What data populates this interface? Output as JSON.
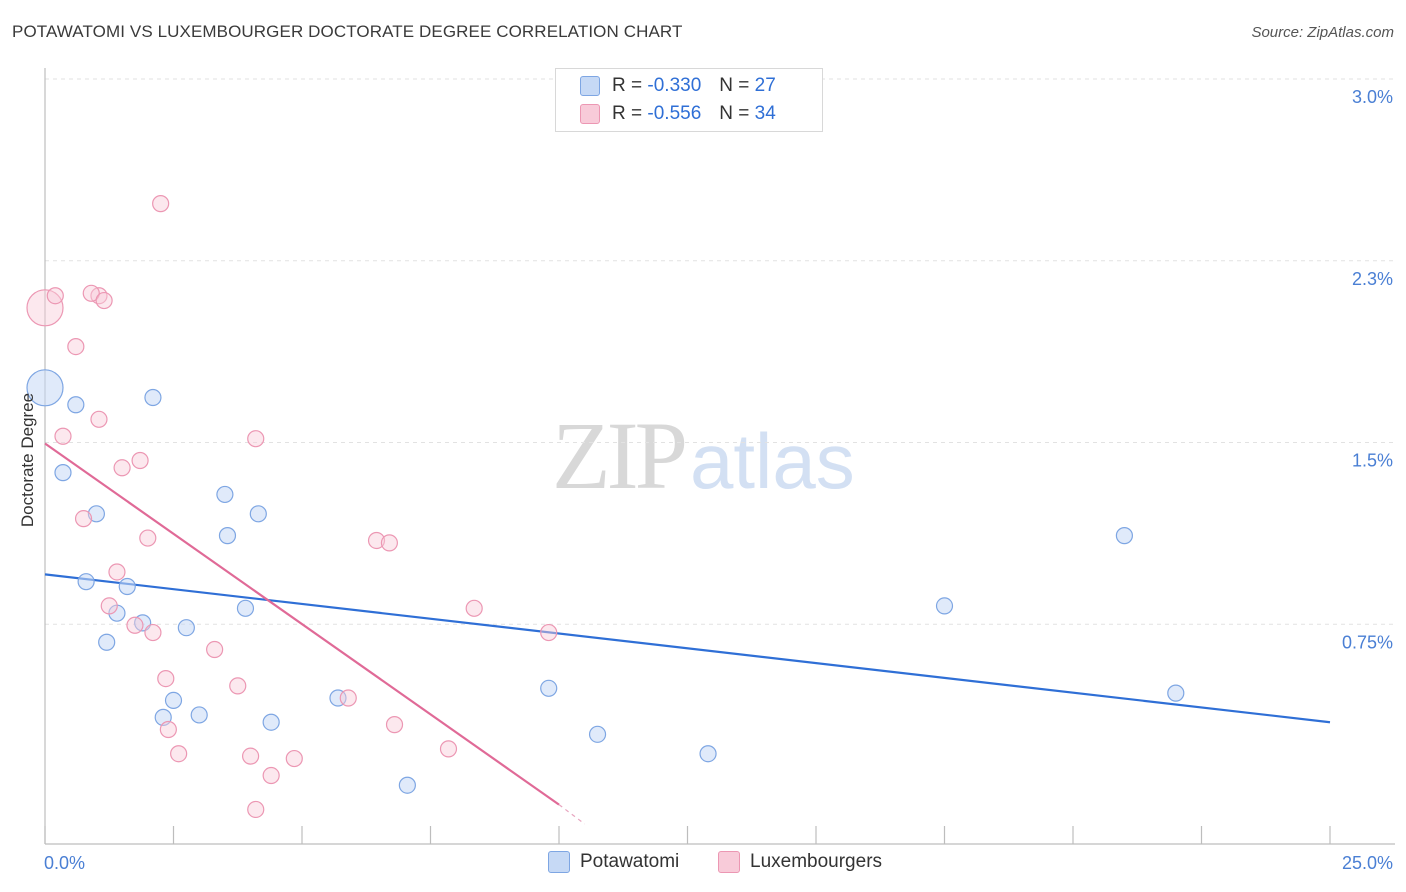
{
  "title": "POTAWATOMI VS LUXEMBOURGER DOCTORATE DEGREE CORRELATION CHART",
  "source": "Source: ZipAtlas.com",
  "watermark": {
    "zip": "ZIP",
    "atlas": "atlas"
  },
  "legend": {
    "rows": [
      {
        "r_label": "R = ",
        "r_value": "-0.330",
        "n_label": "N = ",
        "n_value": "27"
      },
      {
        "r_label": "R = ",
        "r_value": "-0.556",
        "n_label": "N = ",
        "n_value": "34"
      }
    ]
  },
  "bottom_legend": {
    "potawatomi": "Potawatomi",
    "luxembourgers": "Luxembourgers"
  },
  "chart_data": {
    "type": "scatter",
    "title": "POTAWATOMI VS LUXEMBOURGER DOCTORATE DEGREE CORRELATION CHART",
    "xlabel": "",
    "ylabel": "Doctorate Degree",
    "xlim": [
      0,
      25
    ],
    "ylim": [
      0,
      3.0
    ],
    "x_tick_labels": [
      "0.0%",
      "25.0%"
    ],
    "y_ticks": [
      0.75,
      1.5,
      2.25,
      3.0
    ],
    "y_tick_labels": [
      "0.75%",
      "1.5%",
      "2.3%",
      "3.0%"
    ],
    "colors": {
      "potawatomi": "#6a9fe0",
      "luxembourgers": "#ec8fad",
      "blue_line": "#2f6fd6",
      "pink_line": "#e06a97"
    },
    "series": [
      {
        "name": "Potawatomi",
        "r": -0.33,
        "n": 27,
        "trend": {
          "x": [
            0,
            25
          ],
          "y": [
            1.03,
            0.42
          ]
        },
        "points": [
          {
            "x": 0.0,
            "y": 1.8,
            "big": true
          },
          {
            "x": 0.6,
            "y": 1.73
          },
          {
            "x": 0.35,
            "y": 1.45
          },
          {
            "x": 1.0,
            "y": 1.28
          },
          {
            "x": 0.8,
            "y": 1.0
          },
          {
            "x": 1.6,
            "y": 0.98
          },
          {
            "x": 1.4,
            "y": 0.87
          },
          {
            "x": 1.9,
            "y": 0.83
          },
          {
            "x": 1.2,
            "y": 0.75
          },
          {
            "x": 2.1,
            "y": 1.76
          },
          {
            "x": 2.75,
            "y": 0.81
          },
          {
            "x": 3.5,
            "y": 1.36
          },
          {
            "x": 3.55,
            "y": 1.19
          },
          {
            "x": 3.9,
            "y": 0.89
          },
          {
            "x": 4.15,
            "y": 1.28
          },
          {
            "x": 2.5,
            "y": 0.51
          },
          {
            "x": 2.3,
            "y": 0.44
          },
          {
            "x": 3.0,
            "y": 0.45
          },
          {
            "x": 4.4,
            "y": 0.42
          },
          {
            "x": 5.7,
            "y": 0.52
          },
          {
            "x": 7.05,
            "y": 0.16
          },
          {
            "x": 9.8,
            "y": 0.56
          },
          {
            "x": 10.75,
            "y": 0.37
          },
          {
            "x": 12.9,
            "y": 0.29
          },
          {
            "x": 17.5,
            "y": 0.9
          },
          {
            "x": 21.0,
            "y": 1.19
          },
          {
            "x": 22.0,
            "y": 0.54
          }
        ]
      },
      {
        "name": "Luxembourgers",
        "r": -0.556,
        "n": 34,
        "trend": {
          "x": [
            0,
            10
          ],
          "y": [
            1.57,
            0.08
          ],
          "dash_x": [
            10,
            10.5
          ],
          "dash_y": [
            0.08,
            0.0
          ]
        },
        "points": [
          {
            "x": 0.0,
            "y": 2.13,
            "big": true
          },
          {
            "x": 0.2,
            "y": 2.18
          },
          {
            "x": 1.05,
            "y": 2.18
          },
          {
            "x": 0.9,
            "y": 2.19
          },
          {
            "x": 1.15,
            "y": 2.16
          },
          {
            "x": 0.6,
            "y": 1.97
          },
          {
            "x": 2.25,
            "y": 2.56
          },
          {
            "x": 1.05,
            "y": 1.67
          },
          {
            "x": 0.35,
            "y": 1.6
          },
          {
            "x": 1.5,
            "y": 1.47
          },
          {
            "x": 1.85,
            "y": 1.5
          },
          {
            "x": 0.75,
            "y": 1.26
          },
          {
            "x": 2.0,
            "y": 1.18
          },
          {
            "x": 1.4,
            "y": 1.04
          },
          {
            "x": 1.25,
            "y": 0.9
          },
          {
            "x": 1.75,
            "y": 0.82
          },
          {
            "x": 2.1,
            "y": 0.79
          },
          {
            "x": 4.1,
            "y": 1.59
          },
          {
            "x": 3.3,
            "y": 0.72
          },
          {
            "x": 6.45,
            "y": 1.17
          },
          {
            "x": 6.7,
            "y": 1.16
          },
          {
            "x": 8.35,
            "y": 0.89
          },
          {
            "x": 9.8,
            "y": 0.79
          },
          {
            "x": 2.35,
            "y": 0.6
          },
          {
            "x": 3.75,
            "y": 0.57
          },
          {
            "x": 5.9,
            "y": 0.52
          },
          {
            "x": 2.4,
            "y": 0.39
          },
          {
            "x": 2.6,
            "y": 0.29
          },
          {
            "x": 4.0,
            "y": 0.28
          },
          {
            "x": 4.4,
            "y": 0.2
          },
          {
            "x": 4.85,
            "y": 0.27
          },
          {
            "x": 6.8,
            "y": 0.41
          },
          {
            "x": 7.85,
            "y": 0.31
          },
          {
            "x": 4.1,
            "y": 0.06
          }
        ]
      }
    ]
  }
}
